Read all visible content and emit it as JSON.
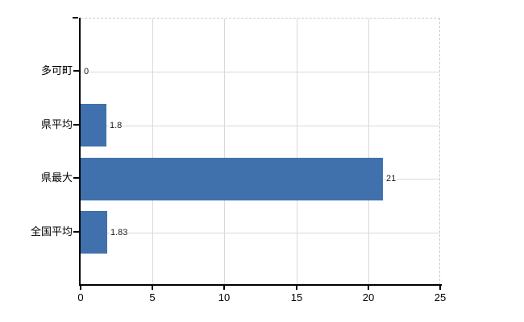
{
  "chart_data": {
    "type": "bar",
    "orientation": "horizontal",
    "title": "",
    "xlabel": "",
    "ylabel": "",
    "categories": [
      "多可町",
      "県平均",
      "県最大",
      "全国平均"
    ],
    "values": [
      0,
      1.8,
      21,
      1.83
    ],
    "value_labels": [
      "0",
      "1.8",
      "21",
      "1.83"
    ],
    "x_ticks": [
      0,
      5,
      10,
      15,
      20,
      25
    ],
    "xlim": [
      0,
      25
    ],
    "grid": "on",
    "legend": "none",
    "colors": {
      "bar": "#4171ad",
      "gridline": "#d9d9d9",
      "plot_border_dashed": "#c6cdc6",
      "axis": "#000000",
      "label_text": "#000000",
      "value_text": "#1a1a1a",
      "background": "#ffffff"
    }
  }
}
